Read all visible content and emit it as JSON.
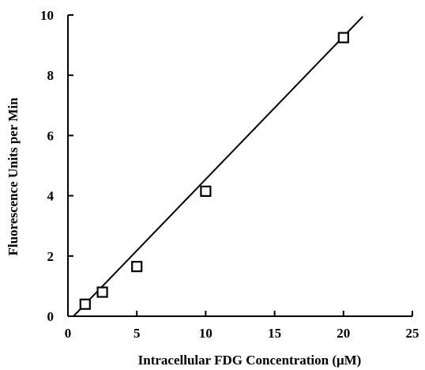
{
  "chart_data": {
    "type": "scatter",
    "title": "",
    "xlabel": "Intracellular FDG Concentration (μM)",
    "ylabel": "Fluorescence Units per Min",
    "xlim": [
      0,
      25
    ],
    "ylim": [
      0,
      10
    ],
    "x_ticks": [
      0,
      5,
      10,
      15,
      20,
      25
    ],
    "y_ticks": [
      0,
      2,
      4,
      6,
      8,
      10
    ],
    "grid": false,
    "legend": "none",
    "series": [
      {
        "marker": "open-square",
        "color": "#000000",
        "points": [
          {
            "x": 1.25,
            "y": 0.4
          },
          {
            "x": 2.5,
            "y": 0.8
          },
          {
            "x": 5,
            "y": 1.65
          },
          {
            "x": 10,
            "y": 4.15
          },
          {
            "x": 20,
            "y": 9.25
          }
        ]
      }
    ],
    "fit_line": {
      "from": {
        "x": 0.4,
        "y": 0
      },
      "to": {
        "x": 21.4,
        "y": 9.95
      },
      "color": "#000000"
    }
  }
}
